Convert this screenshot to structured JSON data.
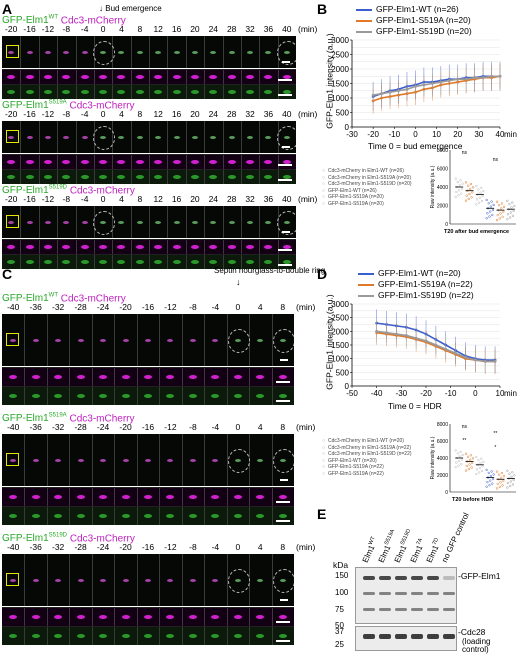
{
  "panels": {
    "a": {
      "letter": "A"
    },
    "b": {
      "letter": "B"
    },
    "c": {
      "letter": "C"
    },
    "d": {
      "letter": "D"
    },
    "e": {
      "letter": "E"
    }
  },
  "panel_a": {
    "event_label": "Bud emergence",
    "unit": "(min)",
    "rows": [
      {
        "gfp": "GFP-Elm1",
        "sup": "WT",
        "mch": "Cdc3-mCherry",
        "ticks": [
          "-20",
          "-16",
          "-12",
          "-8",
          "-4",
          "0",
          "4",
          "8",
          "12",
          "16",
          "20",
          "24",
          "28",
          "32",
          "36",
          "40"
        ]
      },
      {
        "gfp": "GFP-Elm1",
        "sup": "S519A",
        "mch": "Cdc3-mCherry",
        "ticks": [
          "-20",
          "-16",
          "-12",
          "-8",
          "-4",
          "0",
          "4",
          "8",
          "12",
          "16",
          "20",
          "24",
          "28",
          "32",
          "36",
          "40"
        ]
      },
      {
        "gfp": "GFP-Elm1",
        "sup": "S519D",
        "mch": "Cdc3-mCherry",
        "ticks": [
          "-20",
          "-16",
          "-12",
          "-8",
          "-4",
          "0",
          "4",
          "8",
          "12",
          "16",
          "20",
          "24",
          "28",
          "32",
          "36",
          "40"
        ]
      }
    ]
  },
  "panel_c": {
    "event_label": "Septin hourglass-to-double ring",
    "unit": "(min)",
    "rows": [
      {
        "gfp": "GFP-Elm1",
        "sup": "WT",
        "mch": "Cdc3-mCherry",
        "ticks": [
          "-40",
          "-36",
          "-32",
          "-28",
          "-24",
          "-20",
          "-16",
          "-12",
          "-8",
          "-4",
          "0",
          "4",
          "8"
        ]
      },
      {
        "gfp": "GFP-Elm1",
        "sup": "S519A",
        "mch": "Cdc3-mCherry",
        "ticks": [
          "-40",
          "-36",
          "-32",
          "-28",
          "-24",
          "-20",
          "-16",
          "-12",
          "-8",
          "-4",
          "0",
          "4",
          "8"
        ]
      },
      {
        "gfp": "GFP-Elm1",
        "sup": "S519D",
        "mch": "Cdc3-mCherry",
        "ticks": [
          "-40",
          "-36",
          "-32",
          "-28",
          "-24",
          "-20",
          "-16",
          "-12",
          "-8",
          "-4",
          "0",
          "4",
          "8"
        ]
      }
    ]
  },
  "panel_b": {
    "legend": [
      {
        "label": "GFP-Elm1-WT (n=26)",
        "color": "#3b5fd0"
      },
      {
        "label": "GFP-Elm1-S519A (n=20)",
        "color": "#e07a2a"
      },
      {
        "label": "GFP-Elm1-S519D (n=20)",
        "color": "#9a9a9a"
      }
    ],
    "ylabel": "GFP-Elm1 intensity (a.u.)",
    "xlabel": "Time 0 = bud emergence",
    "yticks": [
      "3000",
      "2500",
      "2000",
      "1500",
      "1000",
      "500",
      "0"
    ],
    "xticks": [
      "-30",
      "-20",
      "-10",
      "0",
      "10",
      "20",
      "30",
      "40"
    ],
    "xunit": "min",
    "inset": {
      "legend": [
        "Cdc3-mCherry in Elm1-WT (n=26)",
        "Cdc3-mCherry in Elm1-S519A (n=20)",
        "Cdc3-mCherry in Elm1-S519D (n=20)",
        "GFP-Elm1-WT (n=26)",
        "GFP-Elm1-S519A (n=20)",
        "GFP-Elm1-S519A (n=20)"
      ],
      "ylabel": "Raw intensity (a.u.)",
      "yticks": [
        "8000",
        "6000",
        "4000",
        "2000",
        "0"
      ],
      "xlabel": "T20 after bud emergence",
      "sig": [
        "ns",
        "ns"
      ]
    }
  },
  "panel_d": {
    "legend": [
      {
        "label": "GFP-Elm1-WT (n=20)",
        "color": "#3b5fd0"
      },
      {
        "label": "GFP-Elm1-S519A (n=22)",
        "color": "#e07a2a"
      },
      {
        "label": "GFP-Elm1-S519D (n=22)",
        "color": "#9a9a9a"
      }
    ],
    "ylabel": "GFP-Elm1 intensity (a.u.)",
    "xlabel": "Time 0 = HDR",
    "yticks": [
      "3000",
      "2500",
      "2000",
      "1500",
      "1000",
      "500",
      "0"
    ],
    "xticks": [
      "-50",
      "-40",
      "-30",
      "-20",
      "-10",
      "0",
      "10"
    ],
    "xunit": "min",
    "inset": {
      "legend": [
        "Cdc3-mCherry in Elm1-WT (n=20)",
        "Cdc3-mCherry in Elm1-S519A (n=22)",
        "Cdc3-mCherry in Elm1-S519D (n=22)",
        "GFP-Elm1-WT (n=20)",
        "GFP-Elm1-S519A (n=22)",
        "GFP-Elm1-S519A (n=22)"
      ],
      "ylabel": "Raw intensity (a.u.)",
      "yticks": [
        "8000",
        "6000",
        "4000",
        "2000",
        "0"
      ],
      "xlabel": "T20 before HDR",
      "sig": [
        "ns",
        "**",
        "**",
        "*"
      ]
    }
  },
  "panel_e": {
    "kda": "kDa",
    "markers": [
      "150",
      "100",
      "75",
      "50",
      "37",
      "25"
    ],
    "lanes": [
      {
        "name": "Elm1",
        "sup": "WT"
      },
      {
        "name": "Elm1",
        "sup": "S519A"
      },
      {
        "name": "Elm1",
        "sup": "S519D"
      },
      {
        "name": "Elm1",
        "sup": "7A"
      },
      {
        "name": "Elm1",
        "sup": "7D"
      },
      {
        "name": "no GFP control",
        "sup": ""
      }
    ],
    "band_labels": [
      "-GFP-Elm1",
      "-Cdc28",
      "(loading",
      "control)"
    ]
  },
  "chart_data": [
    {
      "type": "line",
      "title": "",
      "xlabel": "Time 0 = bud emergence",
      "ylabel": "GFP-Elm1 intensity (a.u.)",
      "xlim": [
        -30,
        40
      ],
      "ylim": [
        0,
        3000
      ],
      "x": [
        -20,
        -16,
        -12,
        -8,
        -4,
        0,
        4,
        8,
        12,
        16,
        20,
        24,
        28,
        32,
        36,
        40
      ],
      "series": [
        {
          "name": "GFP-Elm1-WT (n=26)",
          "color": "#3b5fd0",
          "values": [
            1050,
            1150,
            1250,
            1300,
            1400,
            1450,
            1550,
            1550,
            1600,
            1650,
            1650,
            1700,
            1700,
            1750,
            1750,
            1750
          ]
        },
        {
          "name": "GFP-Elm1-S519A (n=20)",
          "color": "#e07a2a",
          "values": [
            900,
            1000,
            1050,
            1100,
            1150,
            1200,
            1300,
            1350,
            1450,
            1500,
            1550,
            1600,
            1650,
            1700,
            1700,
            1750
          ]
        },
        {
          "name": "GFP-Elm1-S519D (n=20)",
          "color": "#9a9a9a",
          "values": [
            1100,
            1150,
            1200,
            1250,
            1300,
            1400,
            1450,
            1500,
            1550,
            1600,
            1650,
            1650,
            1700,
            1700,
            1750,
            1750
          ]
        }
      ]
    },
    {
      "type": "line",
      "title": "",
      "xlabel": "Time 0 = HDR",
      "ylabel": "GFP-Elm1 intensity (a.u.)",
      "xlim": [
        -50,
        10
      ],
      "ylim": [
        0,
        3000
      ],
      "x": [
        -40,
        -36,
        -32,
        -28,
        -24,
        -20,
        -16,
        -12,
        -8,
        -4,
        0,
        4,
        8
      ],
      "series": [
        {
          "name": "GFP-Elm1-WT (n=20)",
          "color": "#3b5fd0",
          "values": [
            2300,
            2250,
            2200,
            2150,
            2050,
            1900,
            1700,
            1500,
            1300,
            1100,
            1000,
            950,
            950
          ]
        },
        {
          "name": "GFP-Elm1-S519A (n=22)",
          "color": "#e07a2a",
          "values": [
            1950,
            1900,
            1850,
            1800,
            1700,
            1600,
            1450,
            1300,
            1150,
            1000,
            950,
            900,
            900
          ]
        },
        {
          "name": "GFP-Elm1-S519D (n=22)",
          "color": "#9a9a9a",
          "values": [
            2000,
            1950,
            1900,
            1850,
            1750,
            1650,
            1500,
            1350,
            1200,
            1050,
            950,
            900,
            900
          ]
        }
      ]
    }
  ]
}
